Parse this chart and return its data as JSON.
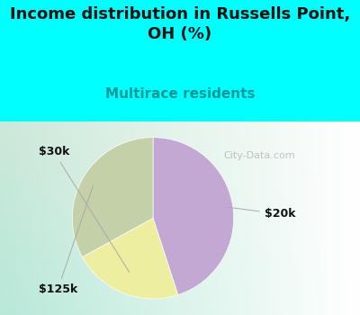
{
  "title": "Income distribution in Russells Point,\nOH (%)",
  "subtitle": "Multirace residents",
  "title_color": "#111111",
  "subtitle_color": "#009999",
  "background_color": "#00ffff",
  "slices": [
    {
      "label": "$20k",
      "value": 45,
      "color": "#c4a8d4"
    },
    {
      "label": "$30k",
      "value": 22,
      "color": "#eeeea0"
    },
    {
      "label": "$125k",
      "value": 33,
      "color": "#c4d0a8"
    }
  ],
  "start_angle": 90,
  "title_fontsize": 13,
  "subtitle_fontsize": 11,
  "label_fontsize": 9,
  "watermark": "City-Data.com"
}
